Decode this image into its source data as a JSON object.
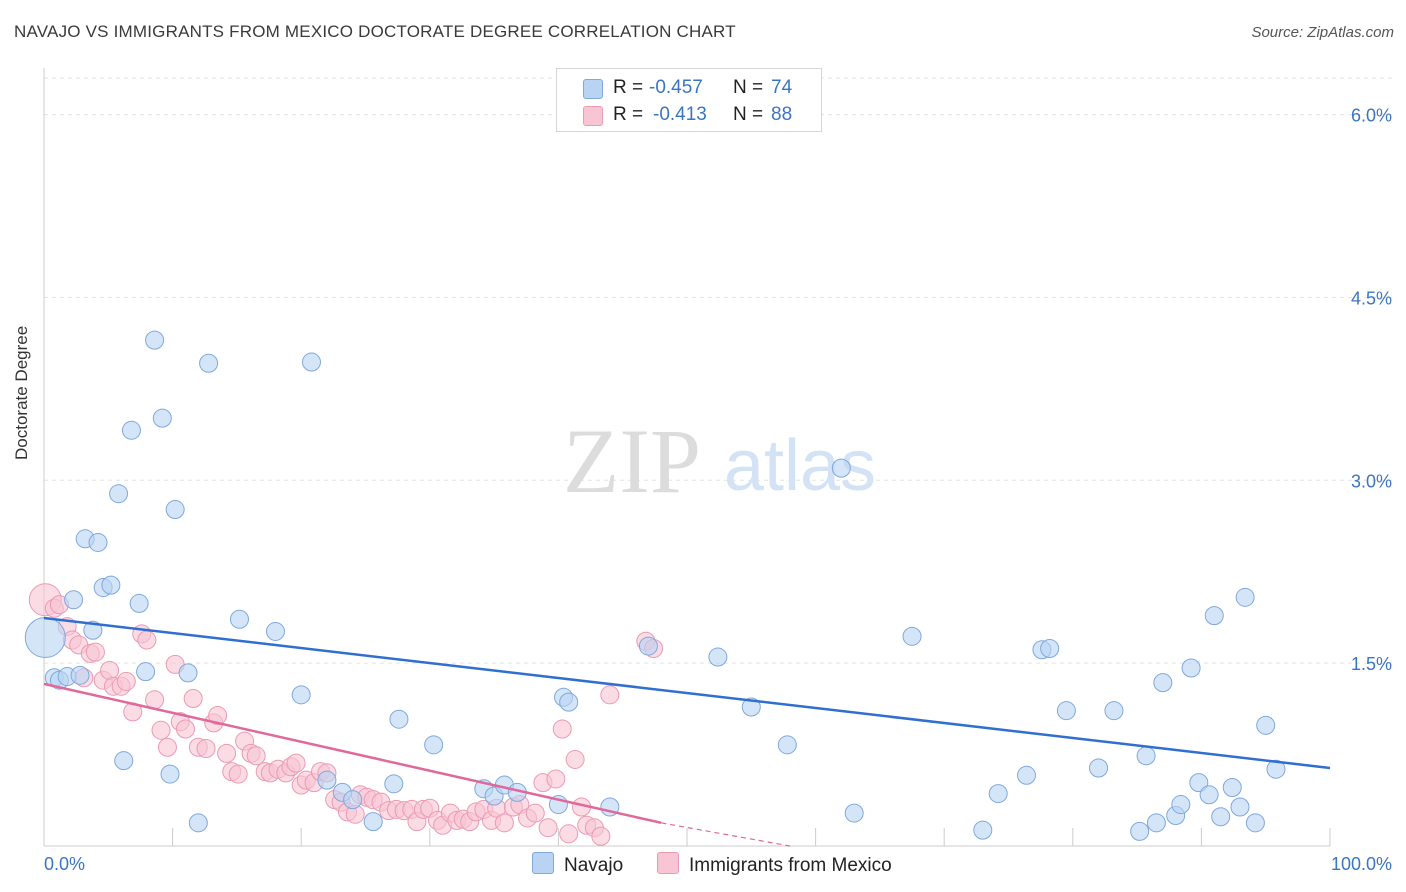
{
  "header": {
    "title": "NAVAJO VS IMMIGRANTS FROM MEXICO DOCTORATE DEGREE CORRELATION CHART",
    "source": "Source: ZipAtlas.com"
  },
  "legend": {
    "r_label": "R =",
    "n_label": "N =",
    "series": [
      {
        "r": "-0.457",
        "n": "74"
      },
      {
        "r": "-0.413",
        "n": "88"
      }
    ]
  },
  "watermark": {
    "zip": "ZIP",
    "atlas": "atlas"
  },
  "colors": {
    "navajo_fill": "#b9d3f3",
    "navajo_stroke": "#7fa8dc",
    "navajo_line": "#2f6fd0",
    "mexico_fill": "#f8c5d4",
    "mexico_stroke": "#eb9ab3",
    "mexico_line": "#e0689a",
    "tick_label": "#3a75c4"
  },
  "chart_data": {
    "type": "scatter",
    "title": "NAVAJO VS IMMIGRANTS FROM MEXICO DOCTORATE DEGREE CORRELATION CHART",
    "xlabel": "",
    "ylabel": "Doctorate Degree",
    "xlim": [
      0,
      100
    ],
    "ylim": [
      0,
      6.3
    ],
    "x_tick_labels": [
      "0.0%",
      "100.0%"
    ],
    "y_ticks": [
      1.5,
      3.0,
      4.5,
      6.0
    ],
    "y_tick_labels": [
      "1.5%",
      "3.0%",
      "4.5%",
      "6.0%"
    ],
    "grid": true,
    "series": [
      {
        "name": "Navajo",
        "r": -0.457,
        "n": 74,
        "trend": {
          "x": [
            0,
            100
          ],
          "y": [
            1.87,
            0.64
          ]
        },
        "points": [
          [
            0.1,
            1.71
          ],
          [
            0.8,
            1.38
          ],
          [
            1.2,
            1.36
          ],
          [
            1.8,
            1.39
          ],
          [
            2.3,
            2.02
          ],
          [
            2.8,
            1.4
          ],
          [
            3.2,
            2.52
          ],
          [
            3.8,
            1.77
          ],
          [
            4.2,
            2.49
          ],
          [
            4.6,
            2.12
          ],
          [
            5.2,
            2.14
          ],
          [
            5.8,
            2.89
          ],
          [
            6.2,
            0.7
          ],
          [
            6.8,
            3.41
          ],
          [
            7.4,
            1.99
          ],
          [
            7.9,
            1.43
          ],
          [
            8.6,
            4.15
          ],
          [
            9.2,
            3.51
          ],
          [
            9.8,
            0.59
          ],
          [
            10.2,
            2.76
          ],
          [
            11.2,
            1.42
          ],
          [
            12.0,
            0.19
          ],
          [
            12.8,
            3.96
          ],
          [
            15.2,
            1.86
          ],
          [
            18.0,
            1.76
          ],
          [
            20.0,
            1.24
          ],
          [
            20.8,
            3.97
          ],
          [
            22.0,
            0.54
          ],
          [
            23.2,
            0.44
          ],
          [
            24.0,
            0.38
          ],
          [
            25.6,
            0.2
          ],
          [
            27.2,
            0.51
          ],
          [
            27.6,
            1.04
          ],
          [
            30.3,
            0.83
          ],
          [
            34.2,
            0.47
          ],
          [
            35.0,
            0.41
          ],
          [
            35.8,
            0.5
          ],
          [
            36.8,
            0.44
          ],
          [
            40.0,
            0.34
          ],
          [
            40.4,
            1.22
          ],
          [
            40.8,
            1.18
          ],
          [
            44.0,
            0.32
          ],
          [
            47.0,
            1.64
          ],
          [
            52.4,
            1.55
          ],
          [
            55.0,
            1.14
          ],
          [
            57.8,
            0.83
          ],
          [
            62.0,
            3.1
          ],
          [
            63.0,
            0.27
          ],
          [
            67.5,
            1.72
          ],
          [
            73.0,
            0.13
          ],
          [
            74.2,
            0.43
          ],
          [
            76.4,
            0.58
          ],
          [
            77.6,
            1.61
          ],
          [
            78.2,
            1.62
          ],
          [
            79.5,
            1.11
          ],
          [
            82.0,
            0.64
          ],
          [
            83.2,
            1.11
          ],
          [
            85.2,
            0.12
          ],
          [
            85.7,
            0.74
          ],
          [
            86.5,
            0.19
          ],
          [
            87.0,
            1.34
          ],
          [
            88.0,
            0.25
          ],
          [
            88.4,
            0.34
          ],
          [
            89.2,
            1.46
          ],
          [
            89.8,
            0.52
          ],
          [
            90.6,
            0.42
          ],
          [
            91.0,
            1.89
          ],
          [
            91.5,
            0.24
          ],
          [
            92.4,
            0.48
          ],
          [
            93.0,
            0.32
          ],
          [
            93.4,
            2.04
          ],
          [
            94.2,
            0.19
          ],
          [
            95.0,
            0.99
          ],
          [
            95.8,
            0.63
          ]
        ]
      },
      {
        "name": "Immigrants from Mexico",
        "r": -0.413,
        "n": 88,
        "trend": {
          "x": [
            0,
            48
          ],
          "y": [
            1.33,
            0.19
          ]
        },
        "trend_extension": {
          "x": [
            48,
            58
          ],
          "y": [
            0.19,
            0.0
          ]
        },
        "points": [
          [
            0.1,
            2.02
          ],
          [
            0.8,
            1.95
          ],
          [
            1.2,
            1.98
          ],
          [
            1.8,
            1.8
          ],
          [
            2.2,
            1.69
          ],
          [
            2.7,
            1.65
          ],
          [
            3.1,
            1.38
          ],
          [
            3.6,
            1.58
          ],
          [
            4.0,
            1.59
          ],
          [
            4.6,
            1.36
          ],
          [
            5.1,
            1.44
          ],
          [
            5.4,
            1.31
          ],
          [
            6.0,
            1.31
          ],
          [
            6.4,
            1.35
          ],
          [
            6.9,
            1.1
          ],
          [
            7.6,
            1.74
          ],
          [
            8.0,
            1.69
          ],
          [
            8.6,
            1.2
          ],
          [
            9.1,
            0.95
          ],
          [
            9.6,
            0.81
          ],
          [
            10.2,
            1.49
          ],
          [
            10.6,
            1.02
          ],
          [
            11.0,
            0.96
          ],
          [
            11.6,
            1.21
          ],
          [
            12.0,
            0.81
          ],
          [
            12.6,
            0.8
          ],
          [
            13.2,
            1.01
          ],
          [
            13.5,
            1.07
          ],
          [
            14.2,
            0.76
          ],
          [
            14.6,
            0.61
          ],
          [
            15.1,
            0.59
          ],
          [
            15.6,
            0.86
          ],
          [
            16.1,
            0.76
          ],
          [
            16.5,
            0.74
          ],
          [
            17.2,
            0.61
          ],
          [
            17.6,
            0.6
          ],
          [
            18.2,
            0.63
          ],
          [
            18.8,
            0.6
          ],
          [
            19.2,
            0.65
          ],
          [
            19.6,
            0.68
          ],
          [
            20.0,
            0.5
          ],
          [
            20.4,
            0.54
          ],
          [
            21.0,
            0.52
          ],
          [
            21.5,
            0.61
          ],
          [
            22.0,
            0.6
          ],
          [
            22.6,
            0.38
          ],
          [
            23.1,
            0.36
          ],
          [
            23.6,
            0.28
          ],
          [
            24.2,
            0.26
          ],
          [
            24.6,
            0.42
          ],
          [
            25.1,
            0.4
          ],
          [
            25.6,
            0.38
          ],
          [
            26.2,
            0.36
          ],
          [
            26.8,
            0.29
          ],
          [
            27.4,
            0.3
          ],
          [
            28.0,
            0.29
          ],
          [
            28.6,
            0.3
          ],
          [
            29.0,
            0.2
          ],
          [
            29.5,
            0.3
          ],
          [
            30.0,
            0.31
          ],
          [
            30.6,
            0.21
          ],
          [
            31.0,
            0.17
          ],
          [
            31.6,
            0.27
          ],
          [
            32.1,
            0.21
          ],
          [
            32.6,
            0.22
          ],
          [
            33.1,
            0.2
          ],
          [
            33.6,
            0.28
          ],
          [
            34.2,
            0.3
          ],
          [
            34.8,
            0.21
          ],
          [
            35.2,
            0.31
          ],
          [
            35.8,
            0.19
          ],
          [
            36.5,
            0.32
          ],
          [
            37.0,
            0.34
          ],
          [
            37.6,
            0.23
          ],
          [
            38.2,
            0.27
          ],
          [
            38.8,
            0.52
          ],
          [
            39.2,
            0.15
          ],
          [
            39.8,
            0.55
          ],
          [
            40.3,
            0.96
          ],
          [
            40.8,
            0.1
          ],
          [
            41.3,
            0.71
          ],
          [
            41.8,
            0.32
          ],
          [
            42.2,
            0.17
          ],
          [
            42.8,
            0.15
          ],
          [
            43.3,
            0.08
          ],
          [
            44.0,
            1.24
          ],
          [
            46.8,
            1.68
          ],
          [
            47.4,
            1.62
          ]
        ]
      }
    ]
  },
  "bottom_legend": [
    "Navajo",
    "Immigrants from Mexico"
  ]
}
